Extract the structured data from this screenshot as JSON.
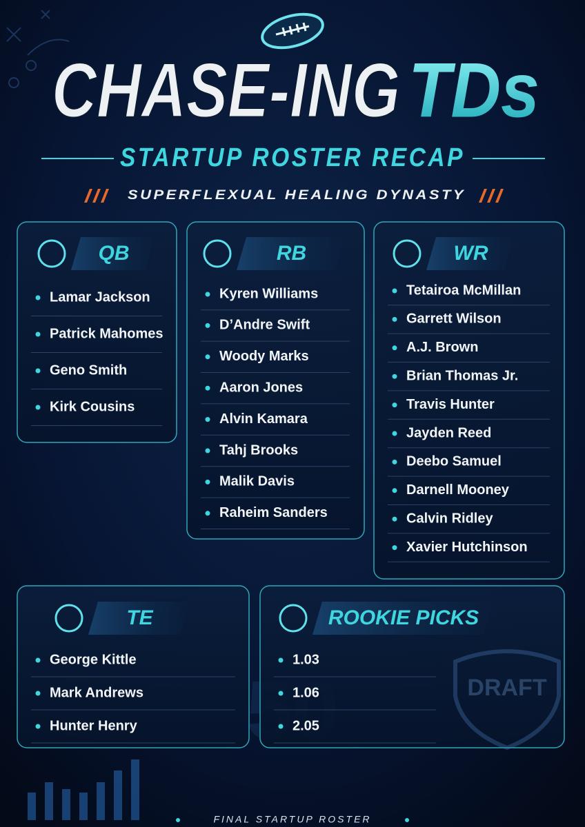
{
  "header": {
    "title_main": "CHASE-ING",
    "title_accent": "TDs",
    "subtitle": "STARTUP ROSTER RECAP",
    "tagline": "SUPERFLEXUAL HEALING DYNASTY"
  },
  "sections": [
    {
      "name": "QB",
      "players": [
        "Lamar Jackson",
        "Patrick Mahomes",
        "Geno Smith",
        "Kirk Cousins"
      ]
    },
    {
      "name": "RB",
      "players": [
        "Kyren Williams",
        "D’Andre Swift",
        "Woody Marks",
        "Aaron Jones",
        "Alvin Kamara",
        "Tahj Brooks",
        "Malik Davis",
        "Raheim Sanders"
      ]
    },
    {
      "name": "WR",
      "players": [
        "Tetairoa McMillan",
        "Garrett Wilson",
        "A.J. Brown",
        "Brian Thomas Jr.",
        "Travis Hunter",
        "Jayden Reed",
        "Deebo Samuel",
        "Darnell Mooney",
        "Calvin Ridley",
        "Xavier Hutchinson"
      ]
    },
    {
      "name": "TE",
      "players": [
        "George Kittle",
        "Mark Andrews",
        "Hunter Henry"
      ]
    },
    {
      "name": "ROOKIE PICKS",
      "players": [
        "1.03",
        "1.06",
        "2.05"
      ]
    }
  ],
  "badge": "DRAFT",
  "field_number": "50",
  "footer": "FINAL STARTUP ROSTER"
}
